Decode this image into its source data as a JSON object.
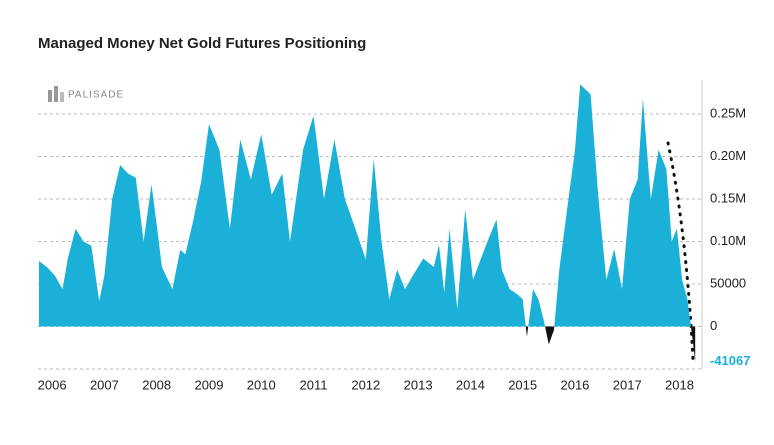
{
  "chart_data": {
    "type": "area",
    "title": "Managed Money Net Gold Futures Positioning",
    "logo": "PALISADE",
    "x": [
      2005.75,
      2005.9,
      2006.05,
      2006.2,
      2006.3,
      2006.45,
      2006.6,
      2006.75,
      2006.9,
      2007.0,
      2007.15,
      2007.3,
      2007.45,
      2007.6,
      2007.75,
      2007.9,
      2008.0,
      2008.1,
      2008.3,
      2008.45,
      2008.55,
      2008.7,
      2008.85,
      2009.0,
      2009.2,
      2009.4,
      2009.6,
      2009.8,
      2010.0,
      2010.2,
      2010.4,
      2010.55,
      2010.8,
      2010.95,
      2011.0,
      2011.2,
      2011.4,
      2011.6,
      2011.8,
      2012.0,
      2012.15,
      2012.3,
      2012.45,
      2012.6,
      2012.75,
      2012.9,
      2013.1,
      2013.3,
      2013.4,
      2013.5,
      2013.6,
      2013.75,
      2013.9,
      2014.05,
      2014.3,
      2014.5,
      2014.6,
      2014.75,
      2014.9,
      2015.0,
      2015.08,
      2015.2,
      2015.3,
      2015.4,
      2015.5,
      2015.6,
      2015.7,
      2015.85,
      2016.0,
      2016.1,
      2016.3,
      2016.45,
      2016.6,
      2016.75,
      2016.9,
      2017.05,
      2017.2,
      2017.3,
      2017.45,
      2017.6,
      2017.75,
      2017.85,
      2017.95,
      2018.05,
      2018.15,
      2018.25,
      2018.3
    ],
    "series": [
      {
        "name": "Managed Money Net",
        "color": "#1ab0d8",
        "negative_color": "#111111",
        "values": [
          77000,
          70000,
          60000,
          44000,
          80000,
          115000,
          100000,
          95000,
          30000,
          60000,
          150000,
          190000,
          180000,
          175000,
          100000,
          167000,
          120000,
          70000,
          44000,
          90000,
          85000,
          125000,
          170000,
          238000,
          208000,
          115000,
          220000,
          173000,
          226000,
          155000,
          180000,
          100000,
          208000,
          238000,
          248000,
          150000,
          220000,
          150000,
          115000,
          79000,
          197000,
          100000,
          32000,
          67000,
          44000,
          60000,
          80000,
          70000,
          96000,
          40000,
          115000,
          20000,
          138000,
          55000,
          96000,
          126000,
          67000,
          44000,
          38000,
          32000,
          -12000,
          44000,
          32000,
          8000,
          -21000,
          -4000,
          67000,
          138000,
          208000,
          285000,
          273000,
          150000,
          55000,
          91000,
          44000,
          150000,
          173000,
          268000,
          150000,
          208000,
          185000,
          100000,
          115000,
          55000,
          32000,
          -15000,
          -41067
        ]
      }
    ],
    "xlim": [
      2005.73,
      2018.43
    ],
    "xticks": [
      2006,
      2007,
      2008,
      2009,
      2010,
      2011,
      2012,
      2013,
      2014,
      2015,
      2016,
      2017,
      2018
    ],
    "ylim": [
      -50000,
      290000
    ],
    "yticks": [
      0,
      50000,
      {
        "value": 100000,
        "label": "0.10M"
      },
      {
        "value": 150000,
        "label": "0.15M"
      },
      {
        "value": 200000,
        "label": "0.20M"
      },
      {
        "value": 250000,
        "label": "0.25M"
      }
    ],
    "last_value": -41067,
    "last_value_color": "#1ab0d8",
    "grid": true
  }
}
